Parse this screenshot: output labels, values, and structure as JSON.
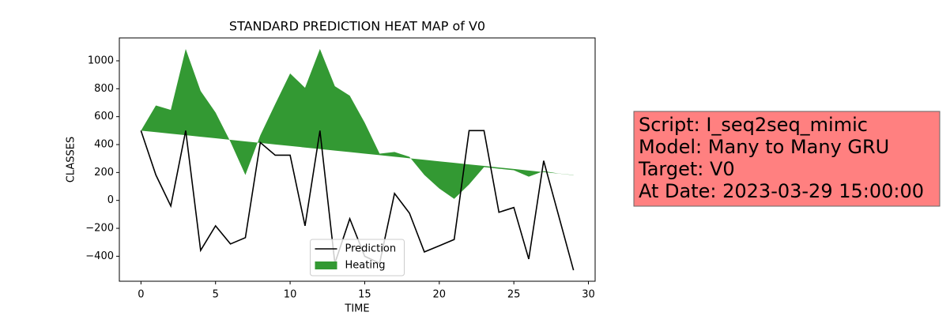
{
  "chart_data": {
    "type": "line",
    "title": "STANDARD PREDICTION HEAT MAP of V0",
    "x_label": "TIME",
    "y_label": "CLASSES",
    "x": [
      0,
      1,
      2,
      3,
      4,
      5,
      6,
      7,
      8,
      9,
      10,
      11,
      12,
      13,
      14,
      15,
      16,
      17,
      18,
      19,
      20,
      21,
      22,
      23,
      24,
      25,
      26,
      27,
      28,
      29
    ],
    "series": [
      {
        "name": "Prediction",
        "color": "#000000",
        "kind": "line",
        "values": [
          500,
          182,
          -40,
          500,
          -358,
          -182,
          -312,
          -267,
          415,
          324,
          324,
          -182,
          500,
          -450,
          -131,
          -400,
          -450,
          50,
          -91,
          -369,
          -325,
          -280,
          500,
          500,
          -85,
          -51,
          -420,
          284,
          -108,
          -500
        ]
      },
      {
        "name": "Heating",
        "color": "#339933",
        "kind": "fill",
        "values": [
          500,
          680,
          648,
          1085,
          784,
          630,
          420,
          182,
          466,
          690,
          909,
          807,
          1085,
          818,
          750,
          557,
          335,
          347,
          312,
          182,
          85,
          11,
          114,
          239,
          227,
          216,
          170,
          210,
          193,
          182
        ],
        "base": [
          500,
          489,
          478,
          467,
          456,
          445,
          434,
          423,
          412,
          401,
          390,
          379,
          368,
          357,
          346,
          335,
          324,
          313,
          302,
          291,
          280,
          269,
          258,
          247,
          236,
          225,
          214,
          203,
          192,
          181
        ]
      }
    ],
    "xlim": [
      -1.45,
      30.45
    ],
    "xticks": [
      0,
      5,
      10,
      15,
      20,
      25,
      30
    ],
    "ylim": [
      -579,
      1164
    ],
    "yticks": [
      {
        "value": -400,
        "label": "−400"
      },
      {
        "value": -200,
        "label": "−200"
      },
      0,
      200,
      400,
      600,
      800,
      1000
    ],
    "legend": "lower center",
    "annotation_lines": [
      "Script: I_seq2seq_mimic",
      "Model: Many to Many GRU",
      "Target: V0",
      "At Date: 2023-03-29 15:00:00"
    ]
  }
}
